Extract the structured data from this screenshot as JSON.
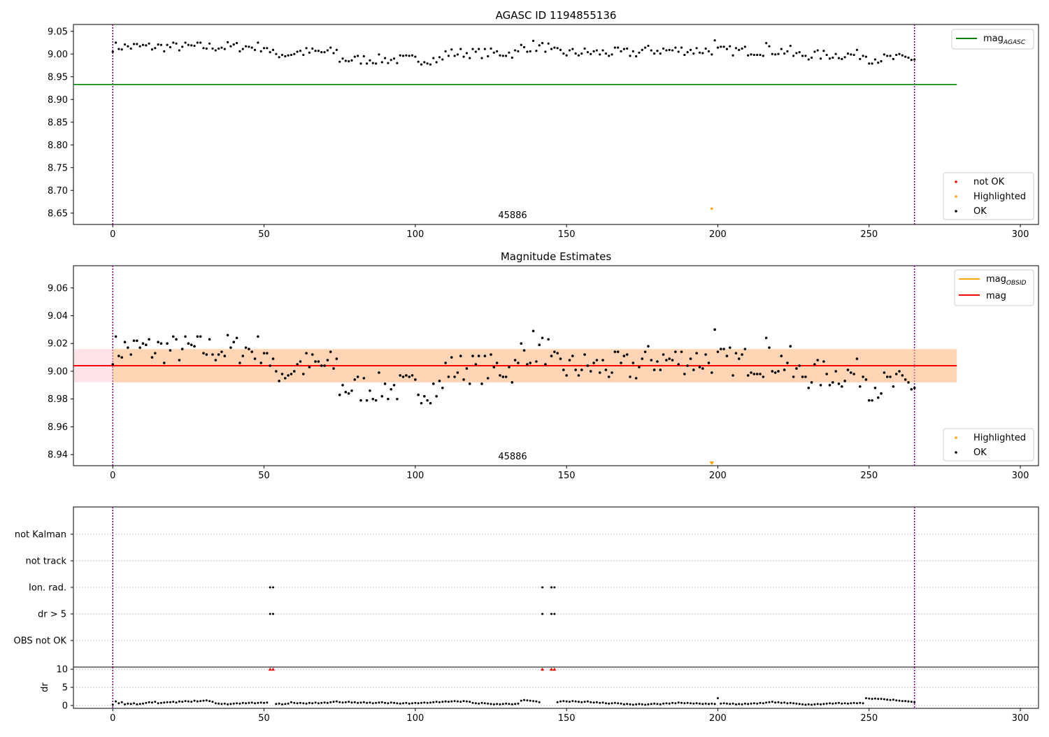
{
  "chart_data": [
    {
      "type": "scatter",
      "title": "AGASC ID 1194855136",
      "xlim": [
        -13,
        306
      ],
      "ylim": [
        8.625,
        9.065
      ],
      "xticks": [
        0,
        50,
        100,
        150,
        200,
        250,
        300
      ],
      "yticks": [
        8.65,
        8.7,
        8.75,
        8.8,
        8.85,
        8.9,
        8.95,
        9.0,
        9.05
      ],
      "vlines": [
        0,
        265
      ],
      "annotation": {
        "text": "45886",
        "x": 132,
        "y": 8.645
      },
      "hline": {
        "name": "mag",
        "subscript": "AGASC",
        "y": 8.933,
        "x0": -13,
        "x1": 279,
        "color": "#008000"
      },
      "highlighted_point": {
        "x": 198,
        "y": 8.66
      },
      "legend_lines": [
        {
          "name": "mag",
          "subscript": "AGASC",
          "color": "#008000"
        }
      ],
      "legend_points": [
        {
          "name": "not OK",
          "color": "#ff0000"
        },
        {
          "name": "Highlighted",
          "color": "#ffa500"
        },
        {
          "name": "OK",
          "color": "#000000"
        }
      ],
      "legend_positions": {
        "lines": "upper right",
        "points": "lower right"
      }
    },
    {
      "type": "scatter",
      "title": "Magnitude Estimates",
      "xlim": [
        -13,
        306
      ],
      "ylim": [
        8.932,
        9.076
      ],
      "xticks": [
        0,
        50,
        100,
        150,
        200,
        250,
        300
      ],
      "yticks": [
        8.94,
        8.96,
        8.98,
        9.0,
        9.02,
        9.04,
        9.06
      ],
      "vlines": [
        0,
        265
      ],
      "annotation": {
        "text": "45886",
        "x": 132,
        "y": 8.937
      },
      "mag_line": {
        "name": "mag",
        "y": 9.004,
        "x0": -13,
        "x1": 279,
        "color": "#ff0000"
      },
      "mag_band": {
        "y0": 8.992,
        "y1": 9.016,
        "x0": -13,
        "x1": 279,
        "color": "#ffc0cb"
      },
      "obsid_band": {
        "y0": 8.992,
        "y1": 9.016,
        "x0": 0,
        "x1": 279,
        "color": "#ffa500"
      },
      "highlighted_marker": {
        "x": 198,
        "y": 8.933
      },
      "legend_lines": [
        {
          "name": "mag",
          "subscript": "OBSID",
          "color": "#ffa500"
        },
        {
          "name": "mag",
          "subscript": "",
          "color": "#ff0000"
        }
      ],
      "legend_points": [
        {
          "name": "Highlighted",
          "color": "#ffa500"
        },
        {
          "name": "OK",
          "color": "#000000"
        }
      ],
      "legend_positions": {
        "lines": "upper right",
        "points": "lower right"
      }
    },
    {
      "type": "scatter",
      "title": "",
      "xlim": [
        -13,
        306
      ],
      "categories": [
        "not Kalman",
        "not track",
        "Ion. rad.",
        "dr > 5",
        "OBS not OK"
      ],
      "vlines": [
        0,
        265
      ],
      "flags": {
        "Ion. rad.": [
          52,
          53,
          142,
          145,
          146
        ],
        "dr > 5": [
          52,
          53,
          142,
          145,
          146
        ]
      }
    },
    {
      "type": "scatter",
      "title": "",
      "xlim": [
        -13,
        306
      ],
      "xticks": [
        0,
        50,
        100,
        150,
        200,
        250,
        300
      ],
      "ylim": [
        -0.8,
        10.6
      ],
      "yticks": [
        0,
        5,
        10
      ],
      "ylabel": "dr",
      "vlines": [
        0,
        265
      ],
      "clipped_points": [
        52,
        53,
        142,
        145,
        146
      ],
      "dr_segments": [
        {
          "x0": 0,
          "x1": 51,
          "y": [
            0.2,
            1.1,
            0.6,
            0.9,
            0.3,
            0.5,
            0.4,
            0.6,
            0.3,
            0.4,
            0.5,
            0.7,
            0.9,
            0.8,
            1.0,
            0.6,
            0.7,
            0.8,
            0.9,
            0.9,
            1.0,
            0.8,
            1.1,
            1.0,
            1.2,
            1.1,
            1.0,
            1.3,
            1.1,
            1.2,
            1.3,
            1.4,
            1.2,
            1.0,
            0.6,
            0.5,
            0.4,
            0.5,
            0.3,
            0.4,
            0.5,
            0.6,
            0.5,
            0.7,
            0.6,
            0.7,
            0.8,
            0.6,
            0.7,
            0.8,
            0.7,
            0.8
          ]
        },
        {
          "x0": 54,
          "x1": 141,
          "y": [
            0.4,
            0.5,
            0.3,
            0.4,
            0.5,
            0.9,
            0.7,
            0.6,
            0.7,
            0.6,
            0.5,
            0.7,
            0.6,
            0.8,
            0.6,
            0.7,
            0.8,
            0.7,
            0.9,
            1.0,
            1.1,
            0.9,
            0.8,
            0.9,
            1.0,
            0.8,
            0.9,
            0.7,
            0.8,
            0.9,
            0.7,
            0.8,
            0.6,
            0.7,
            0.8,
            0.9,
            0.7,
            0.6,
            0.8,
            0.7,
            0.6,
            0.5,
            0.6,
            0.7,
            0.5,
            0.6,
            0.7,
            0.6,
            0.7,
            0.8,
            0.7,
            0.8,
            0.9,
            1.0,
            0.9,
            1.0,
            1.1,
            1.0,
            1.1,
            1.2,
            1.1,
            1.0,
            1.2,
            1.1,
            1.0,
            0.7,
            0.6,
            0.5,
            0.7,
            0.6,
            0.5,
            0.4,
            0.3,
            0.4,
            0.3,
            0.4,
            0.5,
            0.4,
            0.3,
            0.4,
            0.5,
            1.3,
            1.5,
            1.4,
            1.3,
            1.2,
            1.1,
            0.9
          ]
        },
        {
          "x0": 147,
          "x1": 265,
          "y": [
            0.9,
            1.1,
            1.2,
            1.1,
            1.0,
            1.2,
            1.1,
            1.0,
            0.9,
            1.0,
            1.1,
            0.9,
            0.8,
            0.9,
            0.7,
            0.8,
            0.6,
            0.5,
            0.6,
            0.7,
            0.6,
            0.5,
            0.3,
            0.4,
            0.3,
            0.2,
            0.3,
            0.4,
            0.3,
            0.2,
            0.3,
            0.4,
            0.5,
            0.4,
            0.3,
            0.5,
            0.6,
            0.5,
            0.7,
            0.6,
            0.8,
            0.7,
            0.6,
            0.7,
            0.6,
            0.5,
            0.6,
            0.5,
            0.4,
            0.5,
            0.4,
            0.5,
            0.4,
            2.0,
            0.5,
            0.6,
            0.5,
            0.4,
            0.5,
            0.3,
            0.4,
            0.3,
            0.5,
            0.4,
            0.5,
            0.6,
            0.5,
            0.7,
            0.6,
            0.8,
            0.9,
            1.0,
            0.8,
            0.9,
            0.7,
            0.8,
            0.6,
            0.7,
            0.6,
            0.5,
            0.4,
            0.3,
            0.2,
            0.3,
            0.2,
            0.3,
            0.4,
            0.3,
            0.4,
            0.5,
            0.6,
            0.5,
            0.6,
            0.7,
            0.5,
            0.6,
            0.5,
            0.6,
            0.7,
            0.6,
            0.7,
            0.6,
            2.0,
            1.9,
            1.8,
            1.9,
            1.8,
            1.8,
            1.7,
            1.6,
            1.5,
            1.6,
            1.4,
            1.3,
            1.2,
            1.2,
            1.1,
            1.0,
            0.9
          ]
        }
      ]
    }
  ]
}
